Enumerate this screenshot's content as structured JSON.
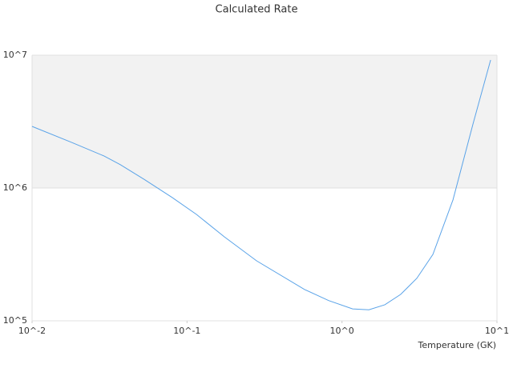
{
  "chart_data": {
    "type": "line",
    "title": "Calculated Rate",
    "x_label": "Temperature (GK)",
    "x": [
      0.01,
      0.0181,
      0.0292,
      0.0371,
      0.053,
      0.0803,
      0.115,
      0.174,
      0.281,
      0.574,
      0.82,
      1.17,
      1.49,
      1.89,
      2.39,
      3.04,
      3.86,
      5.2,
      7.0,
      9.1
    ],
    "values": [
      2910000,
      2200000,
      1740000,
      1500000,
      1160000,
      847000,
      633000,
      429000,
      283000,
      172000,
      142000,
      123000,
      121000,
      132000,
      158000,
      209000,
      316000,
      813000,
      3030000,
      9200000
    ],
    "color": "#5aa3e8",
    "xscale": "log",
    "yscale": "log",
    "xlim": [
      0.01,
      10
    ],
    "ylim": [
      100000,
      10000000
    ],
    "xticks": [
      {
        "value": 0.01,
        "label": "10^-2"
      },
      {
        "value": 0.1,
        "label": "10^-1"
      },
      {
        "value": 1,
        "label": "10^0"
      },
      {
        "value": 10,
        "label": "10^1"
      }
    ],
    "yticks": [
      {
        "value": 100000,
        "label": "10^5"
      },
      {
        "value": 1000000,
        "label": "10^6"
      },
      {
        "value": 10000000,
        "label": "10^7"
      }
    ],
    "band_color": "#f2f2f2"
  }
}
